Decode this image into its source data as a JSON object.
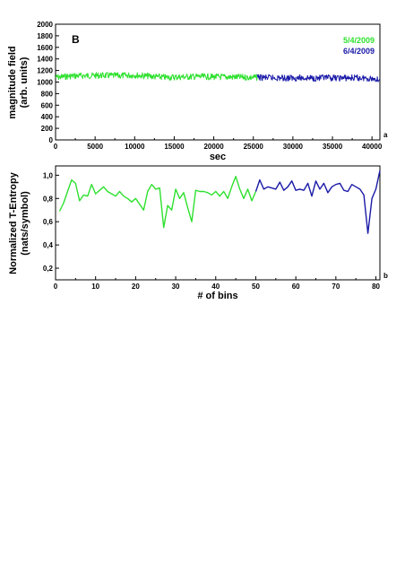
{
  "colors": {
    "green": "#2ee02e",
    "blue": "#1a1aa8",
    "axis": "#000000"
  },
  "chart_data": [
    {
      "type": "line",
      "panel_letter": "B",
      "corner_label": "a",
      "xlabel": "sec",
      "ylabel_lines": [
        "magnitude field",
        "(arb. units)"
      ],
      "xlim": [
        0,
        41000
      ],
      "ylim": [
        0,
        2000
      ],
      "xticks": [
        0,
        5000,
        10000,
        15000,
        20000,
        25000,
        30000,
        35000,
        40000
      ],
      "yticks": [
        0,
        200,
        400,
        600,
        800,
        1000,
        1200,
        1400,
        1600,
        1800,
        2000
      ],
      "legend_placement": "top-right",
      "series": [
        {
          "name": "5/4/2009",
          "color": "green",
          "x": [
            0,
            2000,
            4000,
            6000,
            8000,
            10000,
            12000,
            14000,
            16000,
            18000,
            20000,
            22000,
            24000,
            25500
          ],
          "y": [
            1080,
            1105,
            1110,
            1115,
            1110,
            1120,
            1100,
            1080,
            1090,
            1095,
            1090,
            1088,
            1082,
            1080
          ]
        },
        {
          "name": "6/4/2009",
          "color": "blue",
          "x": [
            25500,
            27000,
            29000,
            31000,
            33000,
            35000,
            37000,
            39000,
            40500,
            41000
          ],
          "y": [
            1080,
            1075,
            1070,
            1072,
            1068,
            1070,
            1072,
            1070,
            1055,
            1040
          ]
        }
      ]
    },
    {
      "type": "line",
      "corner_label": "b",
      "xlabel": "# of bins",
      "ylabel_lines": [
        "Normalized T-Entropy",
        "(nats/symbol)"
      ],
      "xlim": [
        0,
        81
      ],
      "ylim": [
        0.1,
        1.08
      ],
      "xticks": [
        0,
        10,
        20,
        30,
        40,
        50,
        60,
        70,
        80
      ],
      "yticks": [
        0.2,
        0.4,
        0.6,
        0.8,
        1.0
      ],
      "yticklabels": [
        "0,2",
        "0,4",
        "0,6",
        "0,8",
        "1,0"
      ],
      "series": [
        {
          "name": "",
          "color": "green",
          "x": [
            1,
            2,
            3,
            4,
            5,
            6,
            7,
            8,
            9,
            10,
            11,
            12,
            13,
            14,
            15,
            16,
            17,
            18,
            19,
            20,
            21,
            22,
            23,
            24,
            25,
            26,
            27,
            28,
            29,
            30,
            31,
            32,
            33,
            34,
            35,
            36,
            37,
            38,
            39,
            40,
            41,
            42,
            43,
            44,
            45,
            46,
            47,
            48,
            49,
            50
          ],
          "y": [
            0.69,
            0.76,
            0.86,
            0.96,
            0.93,
            0.78,
            0.83,
            0.82,
            0.92,
            0.84,
            0.87,
            0.9,
            0.86,
            0.84,
            0.82,
            0.86,
            0.82,
            0.8,
            0.77,
            0.8,
            0.75,
            0.7,
            0.86,
            0.92,
            0.88,
            0.89,
            0.55,
            0.74,
            0.7,
            0.88,
            0.8,
            0.85,
            0.72,
            0.6,
            0.87,
            0.86,
            0.86,
            0.85,
            0.83,
            0.86,
            0.82,
            0.86,
            0.8,
            0.9,
            0.99,
            0.88,
            0.8,
            0.88,
            0.78,
            0.86
          ]
        },
        {
          "name": "",
          "color": "blue",
          "x": [
            50,
            51,
            52,
            53,
            54,
            55,
            56,
            57,
            58,
            59,
            60,
            61,
            62,
            63,
            64,
            65,
            66,
            67,
            68,
            69,
            70,
            71,
            72,
            73,
            74,
            75,
            76,
            77,
            78,
            79,
            80,
            81
          ],
          "y": [
            0.86,
            0.96,
            0.88,
            0.9,
            0.89,
            0.88,
            0.94,
            0.87,
            0.9,
            0.95,
            0.87,
            0.88,
            0.87,
            0.93,
            0.82,
            0.95,
            0.88,
            0.93,
            0.85,
            0.9,
            0.92,
            0.93,
            0.87,
            0.86,
            0.92,
            0.9,
            0.88,
            0.83,
            0.5,
            0.8,
            0.88,
            1.04
          ]
        }
      ]
    }
  ]
}
